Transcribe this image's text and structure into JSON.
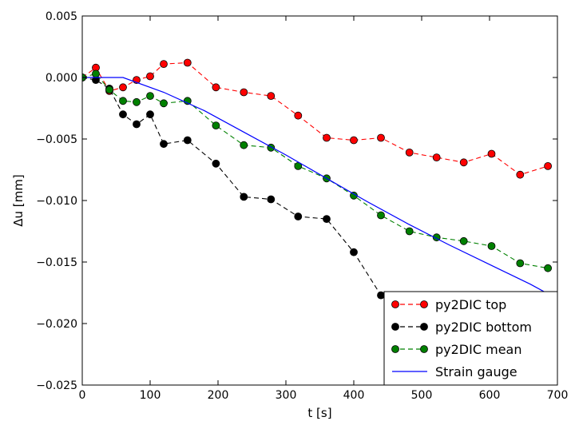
{
  "chart_data": {
    "type": "line",
    "title": "",
    "xlabel": "t [s]",
    "ylabel": "Δu [mm]",
    "xlim": [
      0,
      700
    ],
    "ylim": [
      -0.025,
      0.005
    ],
    "xticks": [
      0,
      100,
      200,
      300,
      400,
      500,
      600,
      700
    ],
    "xtick_labels": [
      "0",
      "100",
      "200",
      "300",
      "400",
      "500",
      "600",
      "700"
    ],
    "yticks": [
      -0.025,
      -0.02,
      -0.015,
      -0.01,
      -0.005,
      0.0,
      0.005
    ],
    "ytick_labels": [
      "−0.025",
      "−0.020",
      "−0.015",
      "−0.010",
      "−0.005",
      "0.000",
      "0.005"
    ],
    "grid": false,
    "legend_position": "lower-right",
    "series": [
      {
        "name": "py2DIC top",
        "color": "#ff0000",
        "style": "dashed-marker",
        "x": [
          0,
          20,
          40,
          60,
          80,
          100,
          120,
          155,
          197,
          238,
          278,
          318,
          360,
          400,
          440,
          482,
          522,
          562,
          603,
          645,
          686
        ],
        "y": [
          0.0,
          0.0008,
          -0.0011,
          -0.0008,
          -0.0002,
          0.0001,
          0.0011,
          0.0012,
          -0.0008,
          -0.0012,
          -0.0015,
          -0.0031,
          -0.0049,
          -0.0051,
          -0.0049,
          -0.0061,
          -0.0065,
          -0.0069,
          -0.0062,
          -0.0079,
          -0.0072
        ]
      },
      {
        "name": "py2DIC bottom",
        "color": "#000000",
        "style": "dashed-marker",
        "x": [
          0,
          20,
          40,
          60,
          80,
          100,
          120,
          155,
          197,
          238,
          278,
          318,
          360,
          400,
          440,
          482,
          522,
          562,
          603,
          645,
          686
        ],
        "y": [
          0.0,
          -0.0002,
          -0.0009,
          -0.003,
          -0.0038,
          -0.003,
          -0.0054,
          -0.0051,
          -0.007,
          -0.0097,
          -0.0099,
          -0.0113,
          -0.0115,
          -0.0142,
          -0.0177,
          -0.0188,
          -0.0198,
          -0.0205,
          -0.0212,
          -0.0218,
          -0.0222
        ]
      },
      {
        "name": "py2DIC mean",
        "color": "#008000",
        "style": "dashed-marker",
        "x": [
          0,
          20,
          40,
          60,
          80,
          100,
          120,
          155,
          197,
          238,
          278,
          318,
          360,
          400,
          440,
          482,
          522,
          562,
          603,
          645,
          686
        ],
        "y": [
          0.0,
          0.0003,
          -0.001,
          -0.0019,
          -0.002,
          -0.0015,
          -0.0021,
          -0.0019,
          -0.0039,
          -0.0055,
          -0.0057,
          -0.0072,
          -0.0082,
          -0.0096,
          -0.0112,
          -0.0125,
          -0.013,
          -0.0133,
          -0.0137,
          -0.0151,
          -0.0155
        ]
      },
      {
        "name": "Strain gauge",
        "color": "#0000ff",
        "style": "solid",
        "x": [
          0,
          60,
          120,
          180,
          240,
          300,
          360,
          420,
          480,
          540,
          600,
          660,
          700
        ],
        "y": [
          0.0,
          0.0,
          -0.0012,
          -0.0027,
          -0.0045,
          -0.0063,
          -0.0082,
          -0.0101,
          -0.0119,
          -0.0136,
          -0.0152,
          -0.0168,
          -0.018
        ]
      }
    ]
  }
}
